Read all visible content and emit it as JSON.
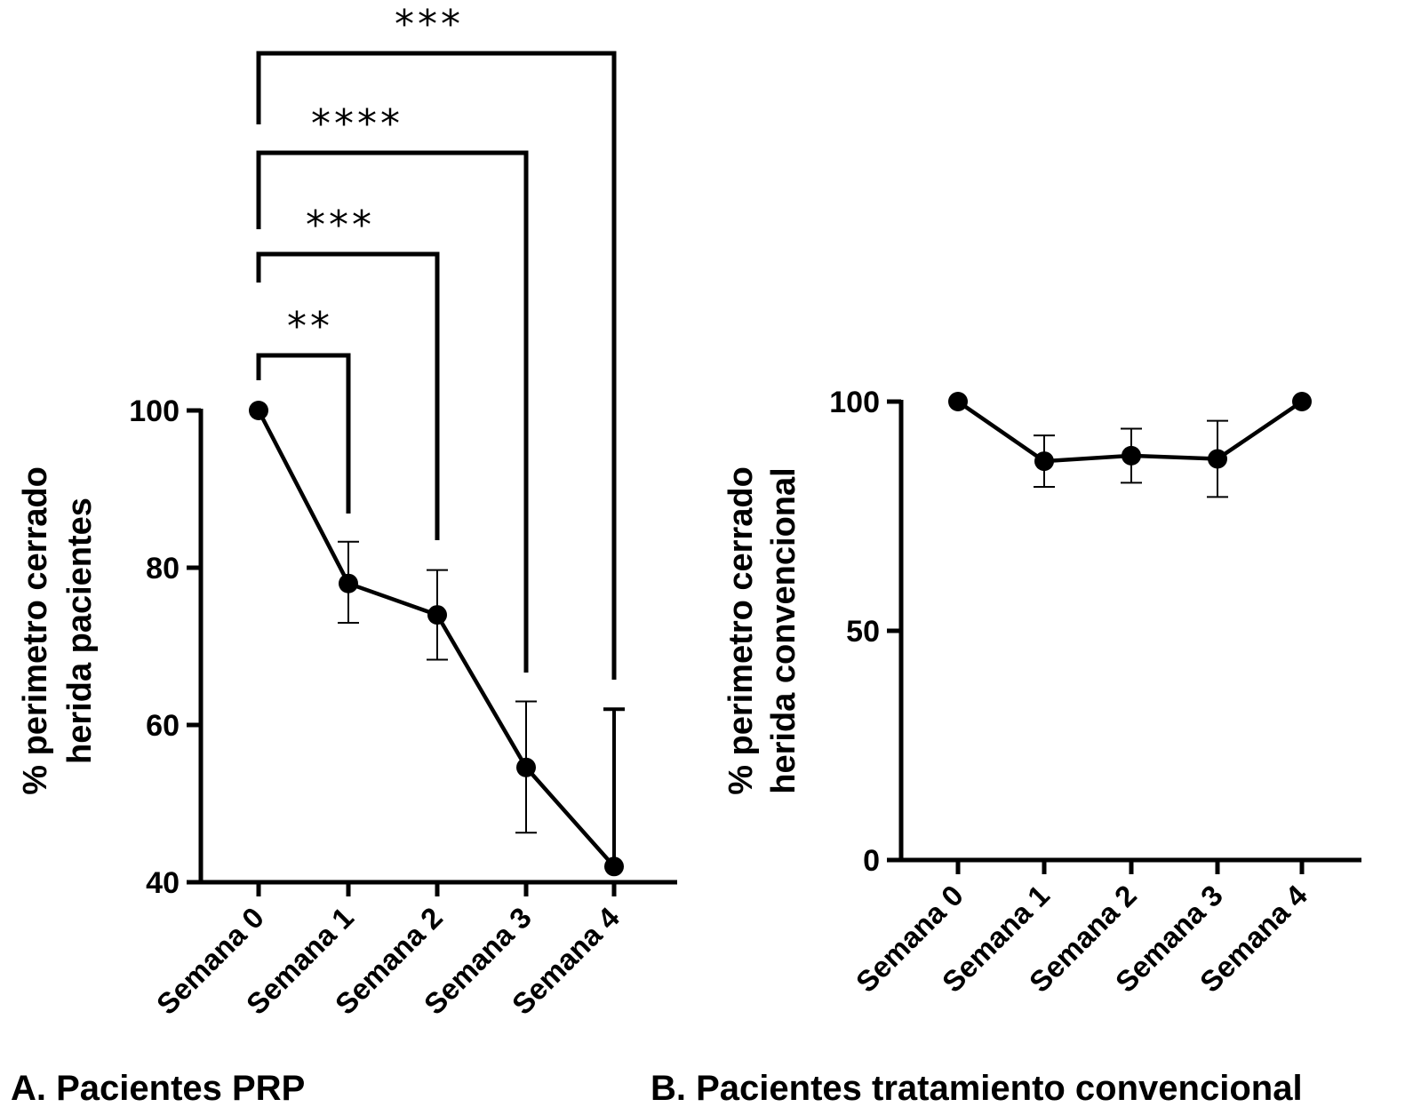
{
  "chart_data": [
    {
      "type": "line",
      "panel_caption": "A.  Pacientes PRP",
      "ylabel_lines": [
        "% perimetro cerrado",
        "herida pacientes"
      ],
      "categories": [
        "Semana 0",
        "Semana 1",
        "Semana 2",
        "Semana 3",
        "Semana 4"
      ],
      "ylim": [
        40,
        100
      ],
      "yticks": [
        40,
        60,
        80,
        100
      ],
      "series": [
        {
          "values": [
            100,
            78,
            74,
            54.6,
            42
          ],
          "error_low": [
            100,
            73,
            68.3,
            46.3,
            42
          ],
          "error_high": [
            100,
            83.3,
            79.7,
            63,
            62
          ],
          "color": "#000000"
        }
      ],
      "significance": [
        {
          "from": 0,
          "to": 1,
          "stars": "**"
        },
        {
          "from": 0,
          "to": 2,
          "stars": "***"
        },
        {
          "from": 0,
          "to": 3,
          "stars": "****"
        },
        {
          "from": 0,
          "to": 4,
          "stars": "***"
        }
      ],
      "grid": false
    },
    {
      "type": "line",
      "panel_caption": "B. Pacientes tratamiento convencional",
      "ylabel_lines": [
        "% perimetro cerrado",
        "herida convencional"
      ],
      "categories": [
        "Semana 0",
        "Semana 1",
        "Semana 2",
        "Semana 3",
        "Semana 4"
      ],
      "ylim": [
        0,
        100
      ],
      "yticks": [
        0,
        50,
        100
      ],
      "series": [
        {
          "values": [
            100,
            87,
            88.2,
            87.5,
            100
          ],
          "error_low": [
            100,
            81.4,
            82.3,
            79.2,
            100
          ],
          "error_high": [
            100,
            92.6,
            94.1,
            95.8,
            100
          ],
          "color": "#000000"
        }
      ],
      "grid": false
    }
  ]
}
